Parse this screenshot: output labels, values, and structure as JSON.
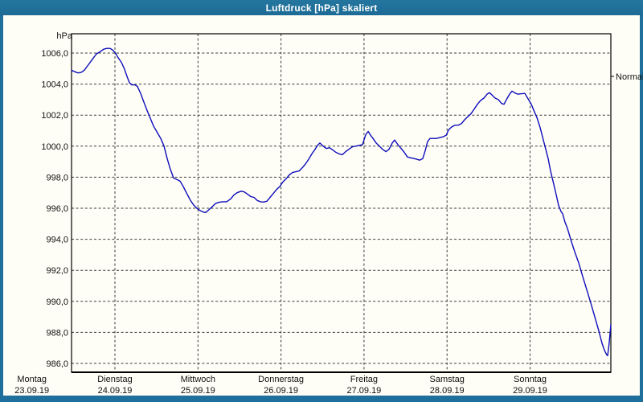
{
  "window": {
    "title": "Luftdruck [hPa] skaliert"
  },
  "chart": {
    "unit_label": "hPa",
    "normal_label": "Normal",
    "y_ticks": [
      {
        "value": 1006,
        "label": "1006,0"
      },
      {
        "value": 1004,
        "label": "1004,0"
      },
      {
        "value": 1002,
        "label": "1002,0"
      },
      {
        "value": 1000,
        "label": "1000,0"
      },
      {
        "value": 998,
        "label": "998,0"
      },
      {
        "value": 996,
        "label": "996,0"
      },
      {
        "value": 994,
        "label": "994,0"
      },
      {
        "value": 992,
        "label": "992,0"
      },
      {
        "value": 990,
        "label": "990,0"
      },
      {
        "value": 988,
        "label": "988,0"
      },
      {
        "value": 986,
        "label": "986,0"
      }
    ],
    "day_labels": [
      {
        "name": "Montag",
        "date": "23.09.19"
      },
      {
        "name": "Dienstag",
        "date": "24.09.19"
      },
      {
        "name": "Mittwoch",
        "date": "25.09.19"
      },
      {
        "name": "Donnerstag",
        "date": "26.09.19"
      },
      {
        "name": "Freitag",
        "date": "27.09.19"
      },
      {
        "name": "Samstag",
        "date": "28.09.19"
      },
      {
        "name": "Sonntag",
        "date": "29.09.19"
      }
    ],
    "colors": {
      "chrome_teal": "#1e6f9c",
      "background": "#fffef6",
      "line_blue": "#0d0dbb",
      "grid": "#3a3a3a",
      "axis": "#000000"
    }
  },
  "chart_data": {
    "type": "line",
    "title": "Luftdruck [hPa] skaliert",
    "xlabel": "",
    "ylabel": "hPa",
    "ylim": [
      985.4,
      1007.2
    ],
    "y_tick_step": 2,
    "x_unit": "days since Montag 23.09.19 00:00",
    "xlim": [
      0.477,
      6.973
    ],
    "day_boundary_ticks": [
      1,
      2,
      3,
      4,
      5,
      6
    ],
    "normal_marker_hpa": 1004.5,
    "grid": "dashed",
    "legend_position": "none",
    "series": [
      {
        "name": "Luftdruck",
        "color": "#0d0dbb",
        "points": [
          [
            0.477,
            1004.9
          ],
          [
            0.516,
            1004.8
          ],
          [
            0.555,
            1004.72
          ],
          [
            0.593,
            1004.75
          ],
          [
            0.632,
            1004.9
          ],
          [
            0.681,
            1005.25
          ],
          [
            0.729,
            1005.6
          ],
          [
            0.777,
            1005.95
          ],
          [
            0.826,
            1006.1
          ],
          [
            0.864,
            1006.25
          ],
          [
            0.903,
            1006.3
          ],
          [
            0.942,
            1006.3
          ],
          [
            0.971,
            1006.2
          ],
          [
            1.0,
            1006.05
          ],
          [
            1.039,
            1005.7
          ],
          [
            1.078,
            1005.4
          ],
          [
            1.116,
            1004.95
          ],
          [
            1.145,
            1004.5
          ],
          [
            1.174,
            1004.1
          ],
          [
            1.203,
            1003.95
          ],
          [
            1.242,
            1003.95
          ],
          [
            1.271,
            1003.85
          ],
          [
            1.31,
            1003.4
          ],
          [
            1.348,
            1002.85
          ],
          [
            1.387,
            1002.3
          ],
          [
            1.426,
            1001.8
          ],
          [
            1.465,
            1001.3
          ],
          [
            1.513,
            1000.85
          ],
          [
            1.552,
            1000.5
          ],
          [
            1.591,
            1000.0
          ],
          [
            1.629,
            999.2
          ],
          [
            1.668,
            998.5
          ],
          [
            1.707,
            997.95
          ],
          [
            1.745,
            997.85
          ],
          [
            1.784,
            997.75
          ],
          [
            1.823,
            997.4
          ],
          [
            1.861,
            997.0
          ],
          [
            1.91,
            996.5
          ],
          [
            1.949,
            996.2
          ],
          [
            1.987,
            996.0
          ],
          [
            2.026,
            995.85
          ],
          [
            2.065,
            995.75
          ],
          [
            2.094,
            995.72
          ],
          [
            2.132,
            995.9
          ],
          [
            2.171,
            996.1
          ],
          [
            2.21,
            996.3
          ],
          [
            2.249,
            996.38
          ],
          [
            2.297,
            996.42
          ],
          [
            2.346,
            996.42
          ],
          [
            2.394,
            996.6
          ],
          [
            2.433,
            996.85
          ],
          [
            2.471,
            997.0
          ],
          [
            2.52,
            997.1
          ],
          [
            2.558,
            997.05
          ],
          [
            2.597,
            996.9
          ],
          [
            2.636,
            996.75
          ],
          [
            2.675,
            996.7
          ],
          [
            2.713,
            996.5
          ],
          [
            2.752,
            996.42
          ],
          [
            2.791,
            996.4
          ],
          [
            2.83,
            996.45
          ],
          [
            2.868,
            996.7
          ],
          [
            2.907,
            996.95
          ],
          [
            2.946,
            997.2
          ],
          [
            2.985,
            997.4
          ],
          [
            3.023,
            997.7
          ],
          [
            3.062,
            997.9
          ],
          [
            3.101,
            998.15
          ],
          [
            3.139,
            998.3
          ],
          [
            3.178,
            998.35
          ],
          [
            3.217,
            998.4
          ],
          [
            3.256,
            998.6
          ],
          [
            3.294,
            998.85
          ],
          [
            3.333,
            999.15
          ],
          [
            3.372,
            999.5
          ],
          [
            3.41,
            999.8
          ],
          [
            3.44,
            1000.05
          ],
          [
            3.469,
            1000.2
          ],
          [
            3.507,
            1000.0
          ],
          [
            3.546,
            999.85
          ],
          [
            3.585,
            999.9
          ],
          [
            3.624,
            999.75
          ],
          [
            3.662,
            999.6
          ],
          [
            3.701,
            999.5
          ],
          [
            3.74,
            999.45
          ],
          [
            3.778,
            999.65
          ],
          [
            3.817,
            999.8
          ],
          [
            3.856,
            999.95
          ],
          [
            3.895,
            1000.0
          ],
          [
            3.943,
            1000.05
          ],
          [
            3.982,
            1000.1
          ],
          [
            4.021,
            1000.75
          ],
          [
            4.05,
            1000.95
          ],
          [
            4.079,
            1000.7
          ],
          [
            4.108,
            1000.5
          ],
          [
            4.146,
            1000.2
          ],
          [
            4.185,
            1000.0
          ],
          [
            4.224,
            999.8
          ],
          [
            4.263,
            999.65
          ],
          [
            4.301,
            999.8
          ],
          [
            4.34,
            1000.2
          ],
          [
            4.369,
            1000.4
          ],
          [
            4.408,
            1000.1
          ],
          [
            4.447,
            999.85
          ],
          [
            4.485,
            999.6
          ],
          [
            4.524,
            999.3
          ],
          [
            4.563,
            999.25
          ],
          [
            4.602,
            999.2
          ],
          [
            4.64,
            999.15
          ],
          [
            4.669,
            999.1
          ],
          [
            4.708,
            999.2
          ],
          [
            4.737,
            999.7
          ],
          [
            4.766,
            1000.3
          ],
          [
            4.795,
            1000.5
          ],
          [
            4.834,
            1000.5
          ],
          [
            4.873,
            1000.5
          ],
          [
            4.911,
            1000.55
          ],
          [
            4.95,
            1000.6
          ],
          [
            4.989,
            1000.7
          ],
          [
            5.018,
            1001.05
          ],
          [
            5.057,
            1001.25
          ],
          [
            5.095,
            1001.35
          ],
          [
            5.134,
            1001.35
          ],
          [
            5.173,
            1001.45
          ],
          [
            5.211,
            1001.7
          ],
          [
            5.25,
            1001.9
          ],
          [
            5.289,
            1002.1
          ],
          [
            5.328,
            1002.4
          ],
          [
            5.366,
            1002.7
          ],
          [
            5.405,
            1002.95
          ],
          [
            5.444,
            1003.1
          ],
          [
            5.483,
            1003.35
          ],
          [
            5.512,
            1003.45
          ],
          [
            5.541,
            1003.3
          ],
          [
            5.579,
            1003.1
          ],
          [
            5.618,
            1003.0
          ],
          [
            5.657,
            1002.75
          ],
          [
            5.686,
            1002.7
          ],
          [
            5.715,
            1003.0
          ],
          [
            5.753,
            1003.35
          ],
          [
            5.782,
            1003.55
          ],
          [
            5.811,
            1003.45
          ],
          [
            5.85,
            1003.35
          ],
          [
            5.899,
            1003.38
          ],
          [
            5.937,
            1003.4
          ],
          [
            5.976,
            1003.05
          ],
          [
            6.015,
            1002.7
          ],
          [
            6.053,
            1002.2
          ],
          [
            6.082,
            1001.85
          ],
          [
            6.121,
            1001.2
          ],
          [
            6.15,
            1000.6
          ],
          [
            6.179,
            1000.0
          ],
          [
            6.218,
            999.2
          ],
          [
            6.247,
            998.4
          ],
          [
            6.276,
            997.75
          ],
          [
            6.314,
            996.9
          ],
          [
            6.343,
            996.2
          ],
          [
            6.372,
            995.8
          ],
          [
            6.392,
            995.65
          ],
          [
            6.421,
            995.1
          ],
          [
            6.45,
            994.7
          ],
          [
            6.489,
            994.0
          ],
          [
            6.537,
            993.2
          ],
          [
            6.585,
            992.5
          ],
          [
            6.634,
            991.6
          ],
          [
            6.682,
            990.75
          ],
          [
            6.731,
            989.9
          ],
          [
            6.779,
            989.0
          ],
          [
            6.828,
            988.1
          ],
          [
            6.866,
            987.3
          ],
          [
            6.895,
            986.85
          ],
          [
            6.924,
            986.55
          ],
          [
            6.934,
            986.5
          ],
          [
            6.953,
            987.3
          ],
          [
            6.973,
            988.5
          ]
        ]
      }
    ]
  }
}
